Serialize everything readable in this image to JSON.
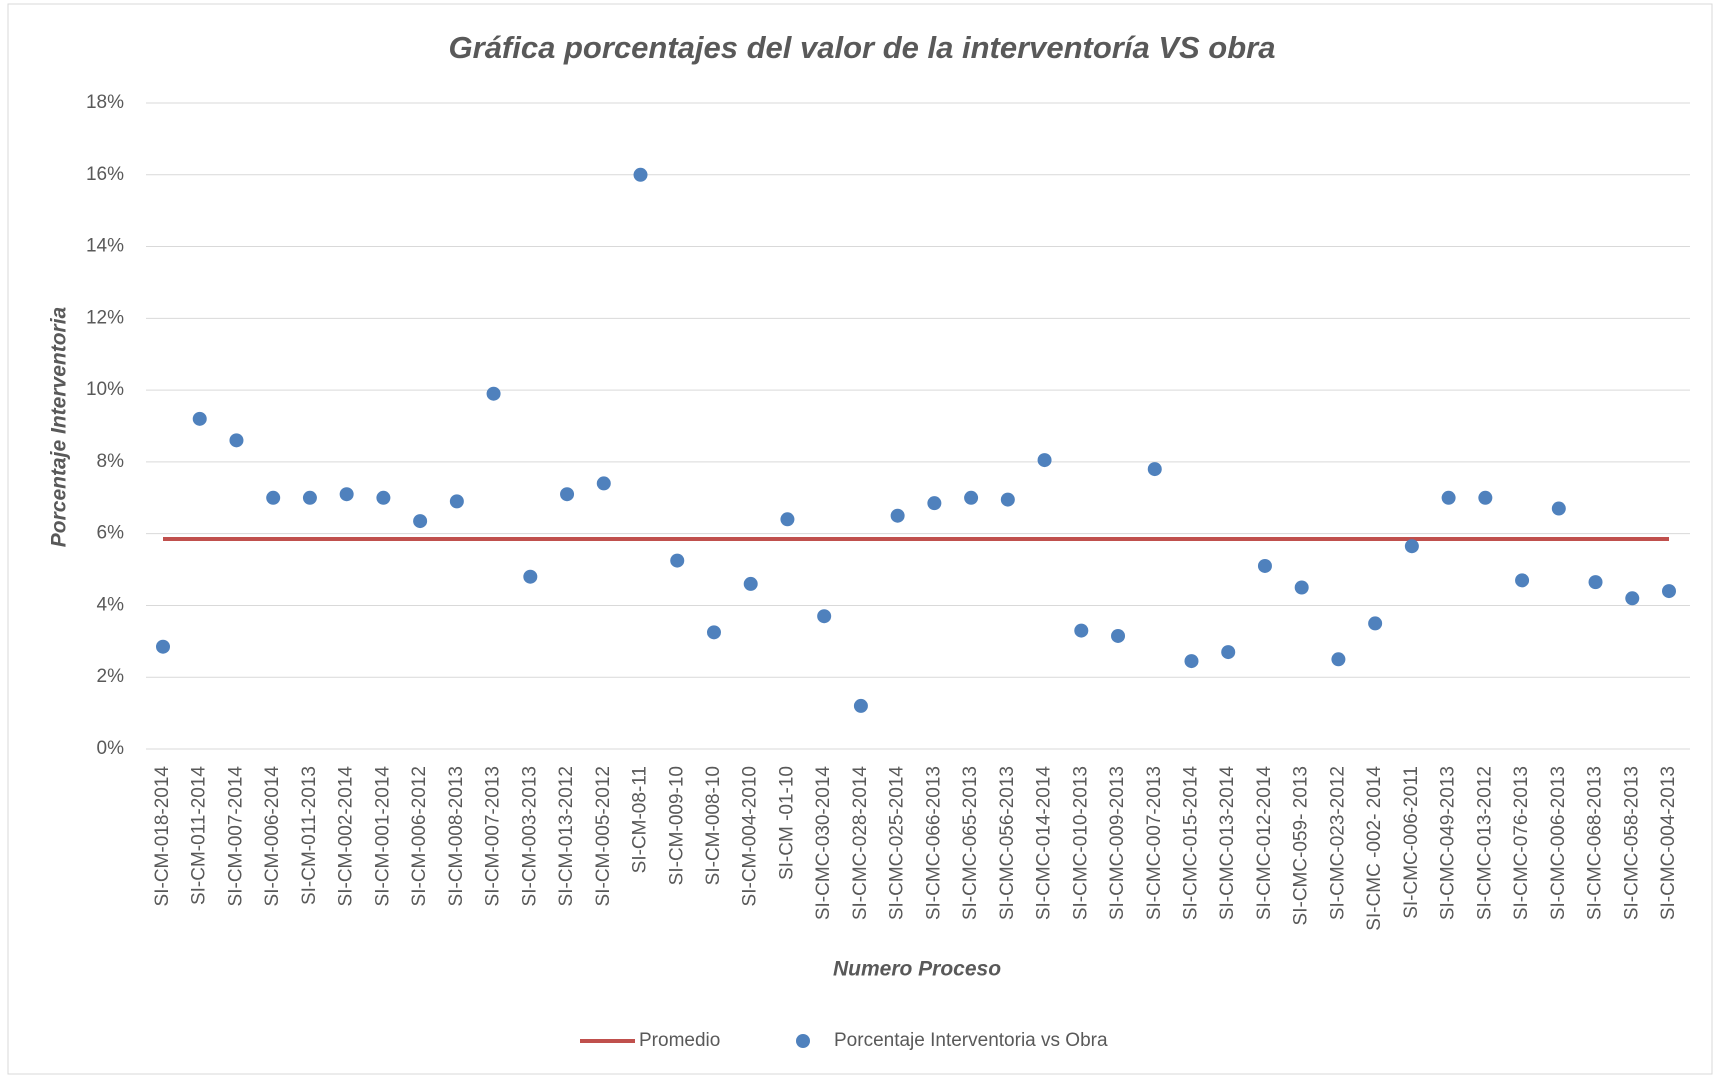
{
  "chart_data": {
    "type": "scatter",
    "title": "Gráfica  porcentajes del valor de la interventoría VS obra",
    "x_label": "Numero Proceso",
    "y_label": "Porcentaje Interventoria",
    "categories": [
      "SI-CM-018-2014",
      "SI-CM-011-2014",
      "SI-CM-007-2014",
      "SI-CM-006-2014",
      "SI-CM-011-2013",
      "SI-CM-002-2014",
      "SI-CM-001-2014",
      "SI-CM-006-2012",
      "SI-CM-008-2013",
      "SI-CM-007-2013",
      "SI-CM-003-2013",
      "SI-CM-013-2012",
      "SI-CM-005-2012",
      "SI-CM-08-11",
      "SI-CM-009-10",
      "SI-CM-008-10",
      "SI-CM-004-2010",
      "SI-CM -01-10",
      "SI-CMC-030-2014",
      "SI-CMC-028-2014",
      "SI-CMC-025-2014",
      "SI-CMC-066-2013",
      "SI-CMC-065-2013",
      "SI-CMC-056-2013",
      "SI-CMC-014-2014",
      "SI-CMC-010-2013",
      "SI-CMC-009-2013",
      "SI-CMC-007-2013",
      "SI-CMC-015-2014",
      "SI-CMC-013-2014",
      "SI-CMC-012-2014",
      "SI-CMC-059- 2013",
      "SI-CMC-023-2012",
      "SI-CMC -002- 2014",
      "SI-CMC-006-2011",
      "SI-CMC-049-2013",
      "SI-CMC-013-2012",
      "SI-CMC-076-2013",
      "SI-CMC-006-2013",
      "SI-CMC-068-2013",
      "SI-CMC-058-2013",
      "SI-CMC-004-2013"
    ],
    "series": [
      {
        "name": "Promedio",
        "color": "#c0504d",
        "values": [
          5.85
        ]
      },
      {
        "name": "Porcentaje Interventoria vs Obra",
        "color": "#4f81bd",
        "values": [
          2.85,
          9.2,
          8.6,
          7.0,
          7.0,
          7.1,
          7.0,
          6.35,
          6.9,
          9.9,
          4.8,
          7.1,
          7.4,
          16.0,
          5.25,
          3.25,
          4.6,
          6.4,
          3.7,
          1.2,
          6.5,
          6.85,
          7.0,
          6.95,
          8.05,
          3.3,
          3.15,
          7.8,
          2.45,
          2.7,
          5.1,
          4.5,
          2.5,
          3.5,
          5.65,
          7.0,
          7.0,
          4.7,
          6.7,
          4.65,
          4.2,
          4.4
        ]
      }
    ],
    "ylim": [
      0,
      18
    ],
    "yticks": [
      {
        "value": 0,
        "label": "0%"
      },
      {
        "value": 2,
        "label": "2%"
      },
      {
        "value": 4,
        "label": "4%"
      },
      {
        "value": 6,
        "label": "6%"
      },
      {
        "value": 8,
        "label": "8%"
      },
      {
        "value": 10,
        "label": "10%"
      },
      {
        "value": 12,
        "label": "12%"
      },
      {
        "value": 14,
        "label": "14%"
      },
      {
        "value": 16,
        "label": "16%"
      },
      {
        "value": 18,
        "label": "18%"
      }
    ],
    "grid": true,
    "legend": "bottom"
  }
}
